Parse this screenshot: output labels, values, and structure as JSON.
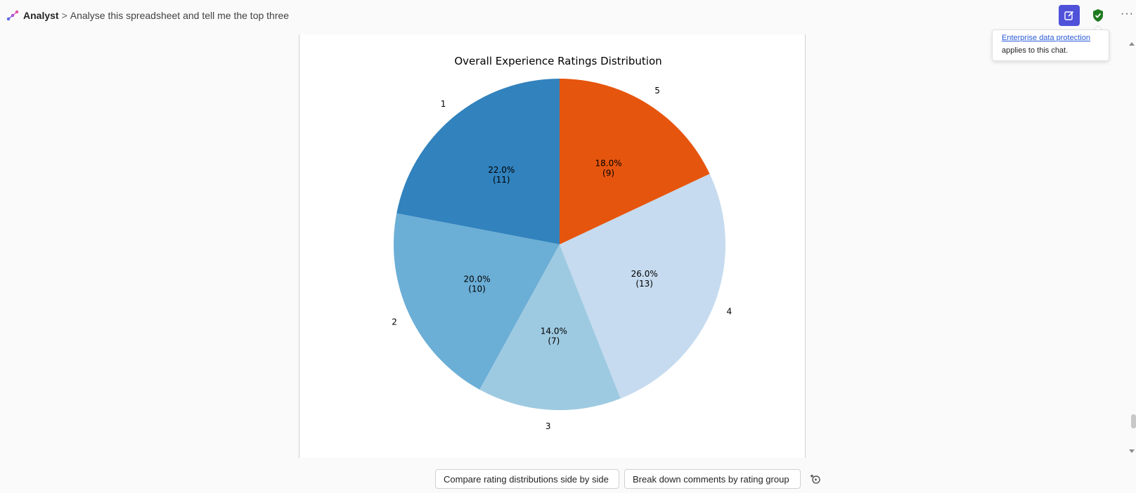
{
  "header": {
    "app_name": "Analyst",
    "separator": ">",
    "chat_title": "Analyse this spreadsheet and tell me the top three",
    "more_label": "···"
  },
  "tooltip": {
    "link_text": "Enterprise data protection",
    "text": "applies to this chat."
  },
  "colors": {
    "accent": "#4f52d9",
    "shield": "#1f7a1f",
    "link": "#2b5bd7"
  },
  "suggestions": [
    "Compare rating distributions side by side",
    "Break down comments by rating group"
  ],
  "icons": {
    "app_logo": "analyst-logo-icon",
    "new_chat": "new-chat-icon",
    "shield": "shield-check-icon",
    "more": "more-icon",
    "suggest": "sparkle-suggest-icon"
  },
  "chart_data": {
    "type": "pie",
    "title": "Overall Experience Ratings Distribution",
    "slices": [
      {
        "label": "1",
        "value": 11,
        "percent": "22.0%",
        "count": "(11)",
        "color": "#3182bd"
      },
      {
        "label": "2",
        "value": 10,
        "percent": "20.0%",
        "count": "(10)",
        "color": "#6baed6"
      },
      {
        "label": "3",
        "value": 7,
        "percent": "14.0%",
        "count": "(7)",
        "color": "#9ecae1"
      },
      {
        "label": "4",
        "value": 13,
        "percent": "26.0%",
        "count": "(13)",
        "color": "#c6dbef"
      },
      {
        "label": "5",
        "value": 9,
        "percent": "18.0%",
        "count": "(9)",
        "color": "#e6550d"
      }
    ],
    "start_angle": "90 degrees (top)",
    "direction": "counterclockwise",
    "legend": "none"
  }
}
